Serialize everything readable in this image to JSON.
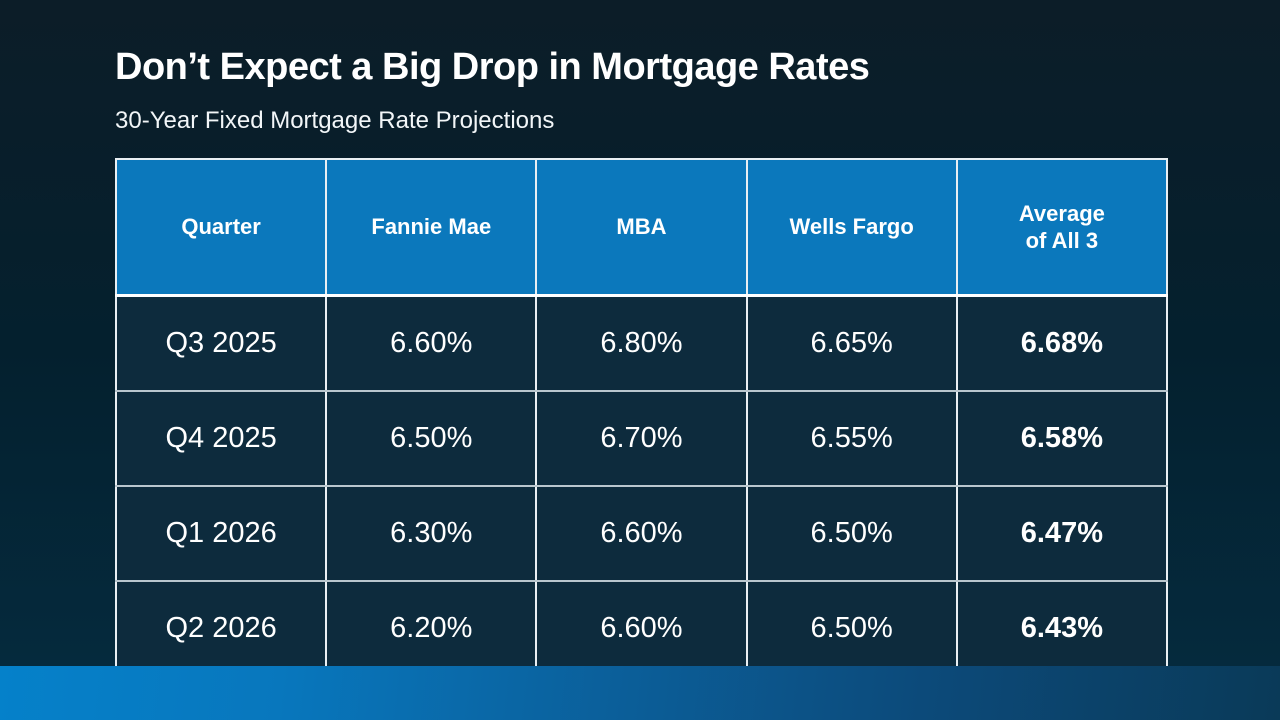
{
  "slide": {
    "title": "Don’t Expect a Big Drop in Mortgage Rates",
    "subtitle": "30-Year Fixed Mortgage Rate Projections"
  },
  "table": {
    "columns": [
      "Quarter",
      "Fannie Mae",
      "MBA",
      "Wells Fargo",
      "Average\nof All 3"
    ],
    "rows": [
      [
        "Q3 2025",
        "6.60%",
        "6.80%",
        "6.65%",
        "6.68%"
      ],
      [
        "Q4 2025",
        "6.50%",
        "6.70%",
        "6.55%",
        "6.58%"
      ],
      [
        "Q1 2026",
        "6.30%",
        "6.60%",
        "6.50%",
        "6.47%"
      ],
      [
        "Q2 2026",
        "6.20%",
        "6.60%",
        "6.50%",
        "6.43%"
      ]
    ]
  },
  "colors": {
    "header_blue": "#0b78bc",
    "cell_navy": "#0d2b3d",
    "background_top": "#0c1d28",
    "background_bottom": "#052a3d",
    "accent_bar_left": "#0581ca",
    "accent_bar_right": "#0a3a58",
    "text": "#ffffff",
    "border_light": "#e9eff3"
  },
  "chart_data": {
    "type": "table",
    "title": "Don’t Expect a Big Drop in Mortgage Rates",
    "subtitle": "30-Year Fixed Mortgage Rate Projections",
    "unit": "%",
    "categories": [
      "Q3 2025",
      "Q4 2025",
      "Q1 2026",
      "Q2 2026"
    ],
    "series": [
      {
        "name": "Fannie Mae",
        "values": [
          6.6,
          6.5,
          6.3,
          6.2
        ]
      },
      {
        "name": "MBA",
        "values": [
          6.8,
          6.7,
          6.6,
          6.6
        ]
      },
      {
        "name": "Wells Fargo",
        "values": [
          6.65,
          6.55,
          6.5,
          6.5
        ]
      },
      {
        "name": "Average of All 3",
        "values": [
          6.68,
          6.58,
          6.47,
          6.43
        ]
      }
    ]
  }
}
